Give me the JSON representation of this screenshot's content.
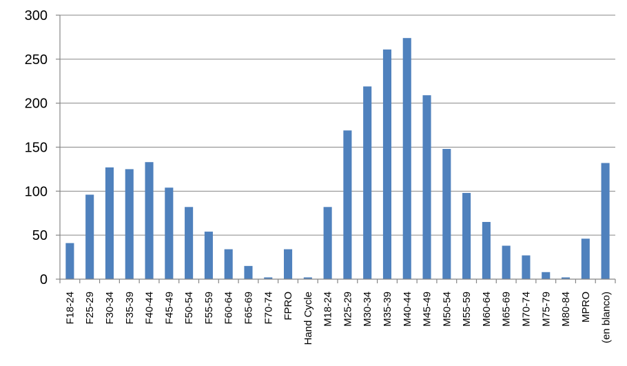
{
  "chart_data": {
    "type": "bar",
    "title": "",
    "xlabel": "",
    "ylabel": "",
    "ylim": [
      0,
      300
    ],
    "yticks": [
      0,
      50,
      100,
      150,
      200,
      250,
      300
    ],
    "grid": true,
    "legend": "none",
    "bar_color": "#4f81bd",
    "categories": [
      "F18-24",
      "F25-29",
      "F30-34",
      "F35-39",
      "F40-44",
      "F45-49",
      "F50-54",
      "F55-59",
      "F60-64",
      "F65-69",
      "F70-74",
      "FPRO",
      "Hand Cycle",
      "M18-24",
      "M25-29",
      "M30-34",
      "M35-39",
      "M40-44",
      "M45-49",
      "M50-54",
      "M55-59",
      "M60-64",
      "M65-69",
      "M70-74",
      "M75-79",
      "M80-84",
      "MPRO",
      "(en blanco)"
    ],
    "values": [
      41,
      96,
      127,
      125,
      133,
      104,
      82,
      54,
      34,
      15,
      2,
      34,
      2,
      82,
      169,
      219,
      261,
      274,
      209,
      148,
      98,
      65,
      38,
      27,
      8,
      2,
      46,
      132
    ]
  }
}
